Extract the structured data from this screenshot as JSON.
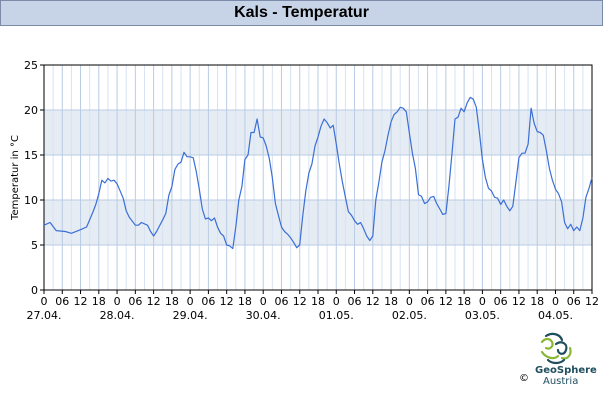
{
  "title": "Kals - Temperatur",
  "logo": {
    "name": "GeoSphere",
    "sub": "Austria",
    "copyright": "©"
  },
  "colors": {
    "line": "#3b6fd6",
    "band": "#e6ecf4",
    "grid_major": "#b9cbe5",
    "grid_minor": "#d7e3f3",
    "title_bg": "#c7d3e6"
  },
  "chart_data": {
    "type": "line",
    "title": "Kals - Temperatur",
    "ylabel": "Temperatur in °C",
    "xlabel": "",
    "ylim": [
      0,
      25
    ],
    "yticks": [
      0,
      5,
      10,
      15,
      20,
      25
    ],
    "x_hour_ticks": [
      "0",
      "06",
      "12",
      "18",
      "0",
      "06",
      "12",
      "18",
      "0",
      "06",
      "12",
      "18",
      "0",
      "06",
      "12",
      "18",
      "0",
      "06",
      "12",
      "18",
      "0",
      "06",
      "12",
      "18",
      "0",
      "06",
      "12",
      "18",
      "0",
      "06",
      "12"
    ],
    "x_dates": [
      "27.04.",
      "28.04.",
      "29.04.",
      "30.04.",
      "01.05.",
      "02.05.",
      "03.05.",
      "04.05."
    ],
    "x_range_hours": [
      0,
      180
    ],
    "grid": true,
    "series": [
      {
        "values": [
          [
            0,
            7.2
          ],
          [
            2,
            7.5
          ],
          [
            4,
            6.6
          ],
          [
            7,
            6.5
          ],
          [
            9,
            6.3
          ],
          [
            12,
            6.7
          ],
          [
            14,
            7.0
          ],
          [
            16,
            8.6
          ],
          [
            17,
            9.5
          ],
          [
            18,
            10.7
          ],
          [
            19,
            12.2
          ],
          [
            20,
            11.9
          ],
          [
            21,
            12.4
          ],
          [
            22,
            12.1
          ],
          [
            23,
            12.2
          ],
          [
            24,
            11.8
          ],
          [
            26,
            10.2
          ],
          [
            27,
            8.8
          ],
          [
            28,
            8.1
          ],
          [
            30,
            7.2
          ],
          [
            31,
            7.2
          ],
          [
            32,
            7.5
          ],
          [
            34,
            7.2
          ],
          [
            35,
            6.5
          ],
          [
            36,
            6.0
          ],
          [
            37,
            6.5
          ],
          [
            39,
            7.8
          ],
          [
            40,
            8.5
          ],
          [
            41,
            10.5
          ],
          [
            42,
            11.5
          ],
          [
            43,
            13.4
          ],
          [
            44,
            14.0
          ],
          [
            45,
            14.2
          ],
          [
            46,
            15.3
          ],
          [
            47,
            14.8
          ],
          [
            48,
            14.8
          ],
          [
            49,
            14.7
          ],
          [
            50,
            13.2
          ],
          [
            51,
            11.2
          ],
          [
            52,
            9.0
          ],
          [
            53,
            7.9
          ],
          [
            54,
            8.0
          ],
          [
            55,
            7.7
          ],
          [
            56,
            8.0
          ],
          [
            57,
            7.0
          ],
          [
            58,
            6.3
          ],
          [
            59,
            6.0
          ],
          [
            60,
            5.0
          ],
          [
            61,
            4.9
          ],
          [
            62,
            4.6
          ],
          [
            63,
            7.0
          ],
          [
            64,
            10.0
          ],
          [
            65,
            11.5
          ],
          [
            66,
            14.5
          ],
          [
            67,
            15.0
          ],
          [
            68,
            17.5
          ],
          [
            69,
            17.5
          ],
          [
            70,
            19.0
          ],
          [
            71,
            17.0
          ],
          [
            72,
            16.9
          ],
          [
            73,
            16.0
          ],
          [
            74,
            14.6
          ],
          [
            75,
            12.5
          ],
          [
            76,
            9.6
          ],
          [
            77,
            8.3
          ],
          [
            78,
            7.0
          ],
          [
            79,
            6.5
          ],
          [
            80,
            6.2
          ],
          [
            81,
            5.8
          ],
          [
            82,
            5.3
          ],
          [
            83,
            4.7
          ],
          [
            84,
            5.0
          ],
          [
            85,
            8.3
          ],
          [
            86,
            11.0
          ],
          [
            87,
            13.0
          ],
          [
            88,
            14.0
          ],
          [
            89,
            16.0
          ],
          [
            90,
            17.0
          ],
          [
            91,
            18.2
          ],
          [
            92,
            19.0
          ],
          [
            93,
            18.6
          ],
          [
            94,
            18.0
          ],
          [
            95,
            18.3
          ],
          [
            96,
            16.2
          ],
          [
            97,
            14.0
          ],
          [
            98,
            12.0
          ],
          [
            99,
            10.3
          ],
          [
            100,
            8.7
          ],
          [
            101,
            8.3
          ],
          [
            102,
            7.7
          ],
          [
            103,
            7.3
          ],
          [
            104,
            7.5
          ],
          [
            105,
            6.8
          ],
          [
            106,
            6.0
          ],
          [
            107,
            5.5
          ],
          [
            108,
            6.0
          ],
          [
            109,
            10.0
          ],
          [
            110,
            12.0
          ],
          [
            111,
            14.2
          ],
          [
            112,
            15.5
          ],
          [
            113,
            17.2
          ],
          [
            114,
            18.7
          ],
          [
            115,
            19.5
          ],
          [
            116,
            19.8
          ],
          [
            117,
            20.3
          ],
          [
            118,
            20.2
          ],
          [
            119,
            19.8
          ],
          [
            120,
            17.5
          ],
          [
            121,
            15.2
          ],
          [
            122,
            13.5
          ],
          [
            123,
            10.6
          ],
          [
            124,
            10.4
          ],
          [
            125,
            9.6
          ],
          [
            126,
            9.8
          ],
          [
            127,
            10.3
          ],
          [
            128,
            10.4
          ],
          [
            129,
            9.6
          ],
          [
            130,
            9.0
          ],
          [
            131,
            8.4
          ],
          [
            132,
            8.5
          ],
          [
            133,
            11.5
          ],
          [
            134,
            15.2
          ],
          [
            135,
            19.0
          ],
          [
            136,
            19.2
          ],
          [
            137,
            20.2
          ],
          [
            138,
            19.8
          ],
          [
            139,
            20.8
          ],
          [
            140,
            21.4
          ],
          [
            141,
            21.2
          ],
          [
            142,
            20.3
          ],
          [
            143,
            17.5
          ],
          [
            144,
            14.5
          ],
          [
            145,
            12.5
          ],
          [
            146,
            11.3
          ],
          [
            147,
            11.0
          ],
          [
            148,
            10.3
          ],
          [
            149,
            10.2
          ],
          [
            150,
            9.5
          ],
          [
            151,
            10.0
          ],
          [
            152,
            9.3
          ],
          [
            153,
            8.8
          ],
          [
            154,
            9.3
          ],
          [
            155,
            12.0
          ],
          [
            156,
            14.7
          ],
          [
            157,
            15.2
          ],
          [
            158,
            15.2
          ],
          [
            159,
            16.2
          ],
          [
            160,
            20.2
          ],
          [
            161,
            18.5
          ],
          [
            162,
            17.6
          ],
          [
            163,
            17.5
          ],
          [
            164,
            17.2
          ],
          [
            165,
            15.5
          ],
          [
            166,
            13.5
          ],
          [
            167,
            12.2
          ],
          [
            168,
            11.2
          ],
          [
            169,
            10.7
          ],
          [
            170,
            9.8
          ],
          [
            171,
            7.5
          ],
          [
            172,
            6.8
          ],
          [
            173,
            7.3
          ],
          [
            174,
            6.6
          ],
          [
            175,
            7.0
          ],
          [
            176,
            6.6
          ],
          [
            177,
            8.0
          ],
          [
            178,
            10.3
          ],
          [
            179,
            11.3
          ],
          [
            180,
            12.5
          ]
        ]
      }
    ]
  }
}
